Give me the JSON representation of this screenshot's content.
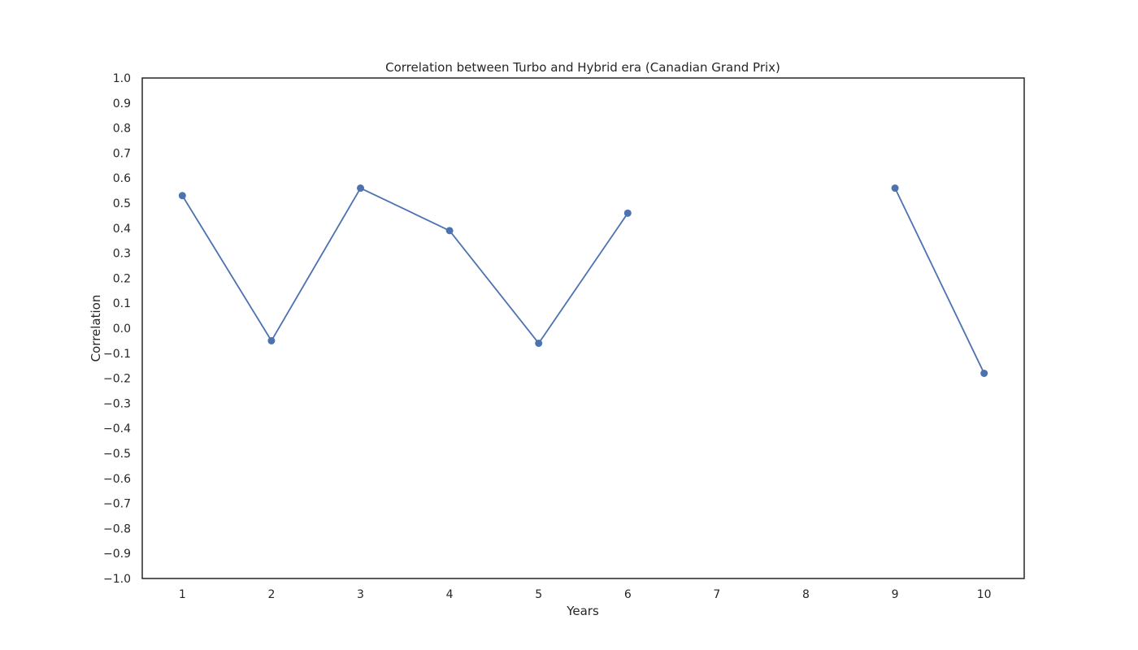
{
  "chart_data": {
    "type": "line",
    "title": "Correlation between Turbo and Hybrid era (Canadian Grand Prix)",
    "xlabel": "Years",
    "ylabel": "Correlation",
    "x": [
      1,
      2,
      3,
      4,
      5,
      6,
      7,
      8,
      9,
      10
    ],
    "values": [
      0.53,
      -0.05,
      0.56,
      0.39,
      -0.06,
      0.46,
      null,
      null,
      0.56,
      -0.18
    ],
    "xlim": [
      0.55,
      10.45
    ],
    "ylim": [
      -1.0,
      1.0
    ],
    "xticks": [
      "1",
      "2",
      "3",
      "4",
      "5",
      "6",
      "7",
      "8",
      "9",
      "10"
    ],
    "yticks": [
      "1.0",
      "0.9",
      "0.8",
      "0.7",
      "0.6",
      "0.5",
      "0.4",
      "0.3",
      "0.2",
      "0.1",
      "0.0",
      "−0.1",
      "−0.2",
      "−0.3",
      "−0.4",
      "−0.5",
      "−0.6",
      "−0.7",
      "−0.8",
      "−0.9",
      "−1.0"
    ],
    "line_color": "#4c72b0",
    "grid": false,
    "legend": false
  }
}
